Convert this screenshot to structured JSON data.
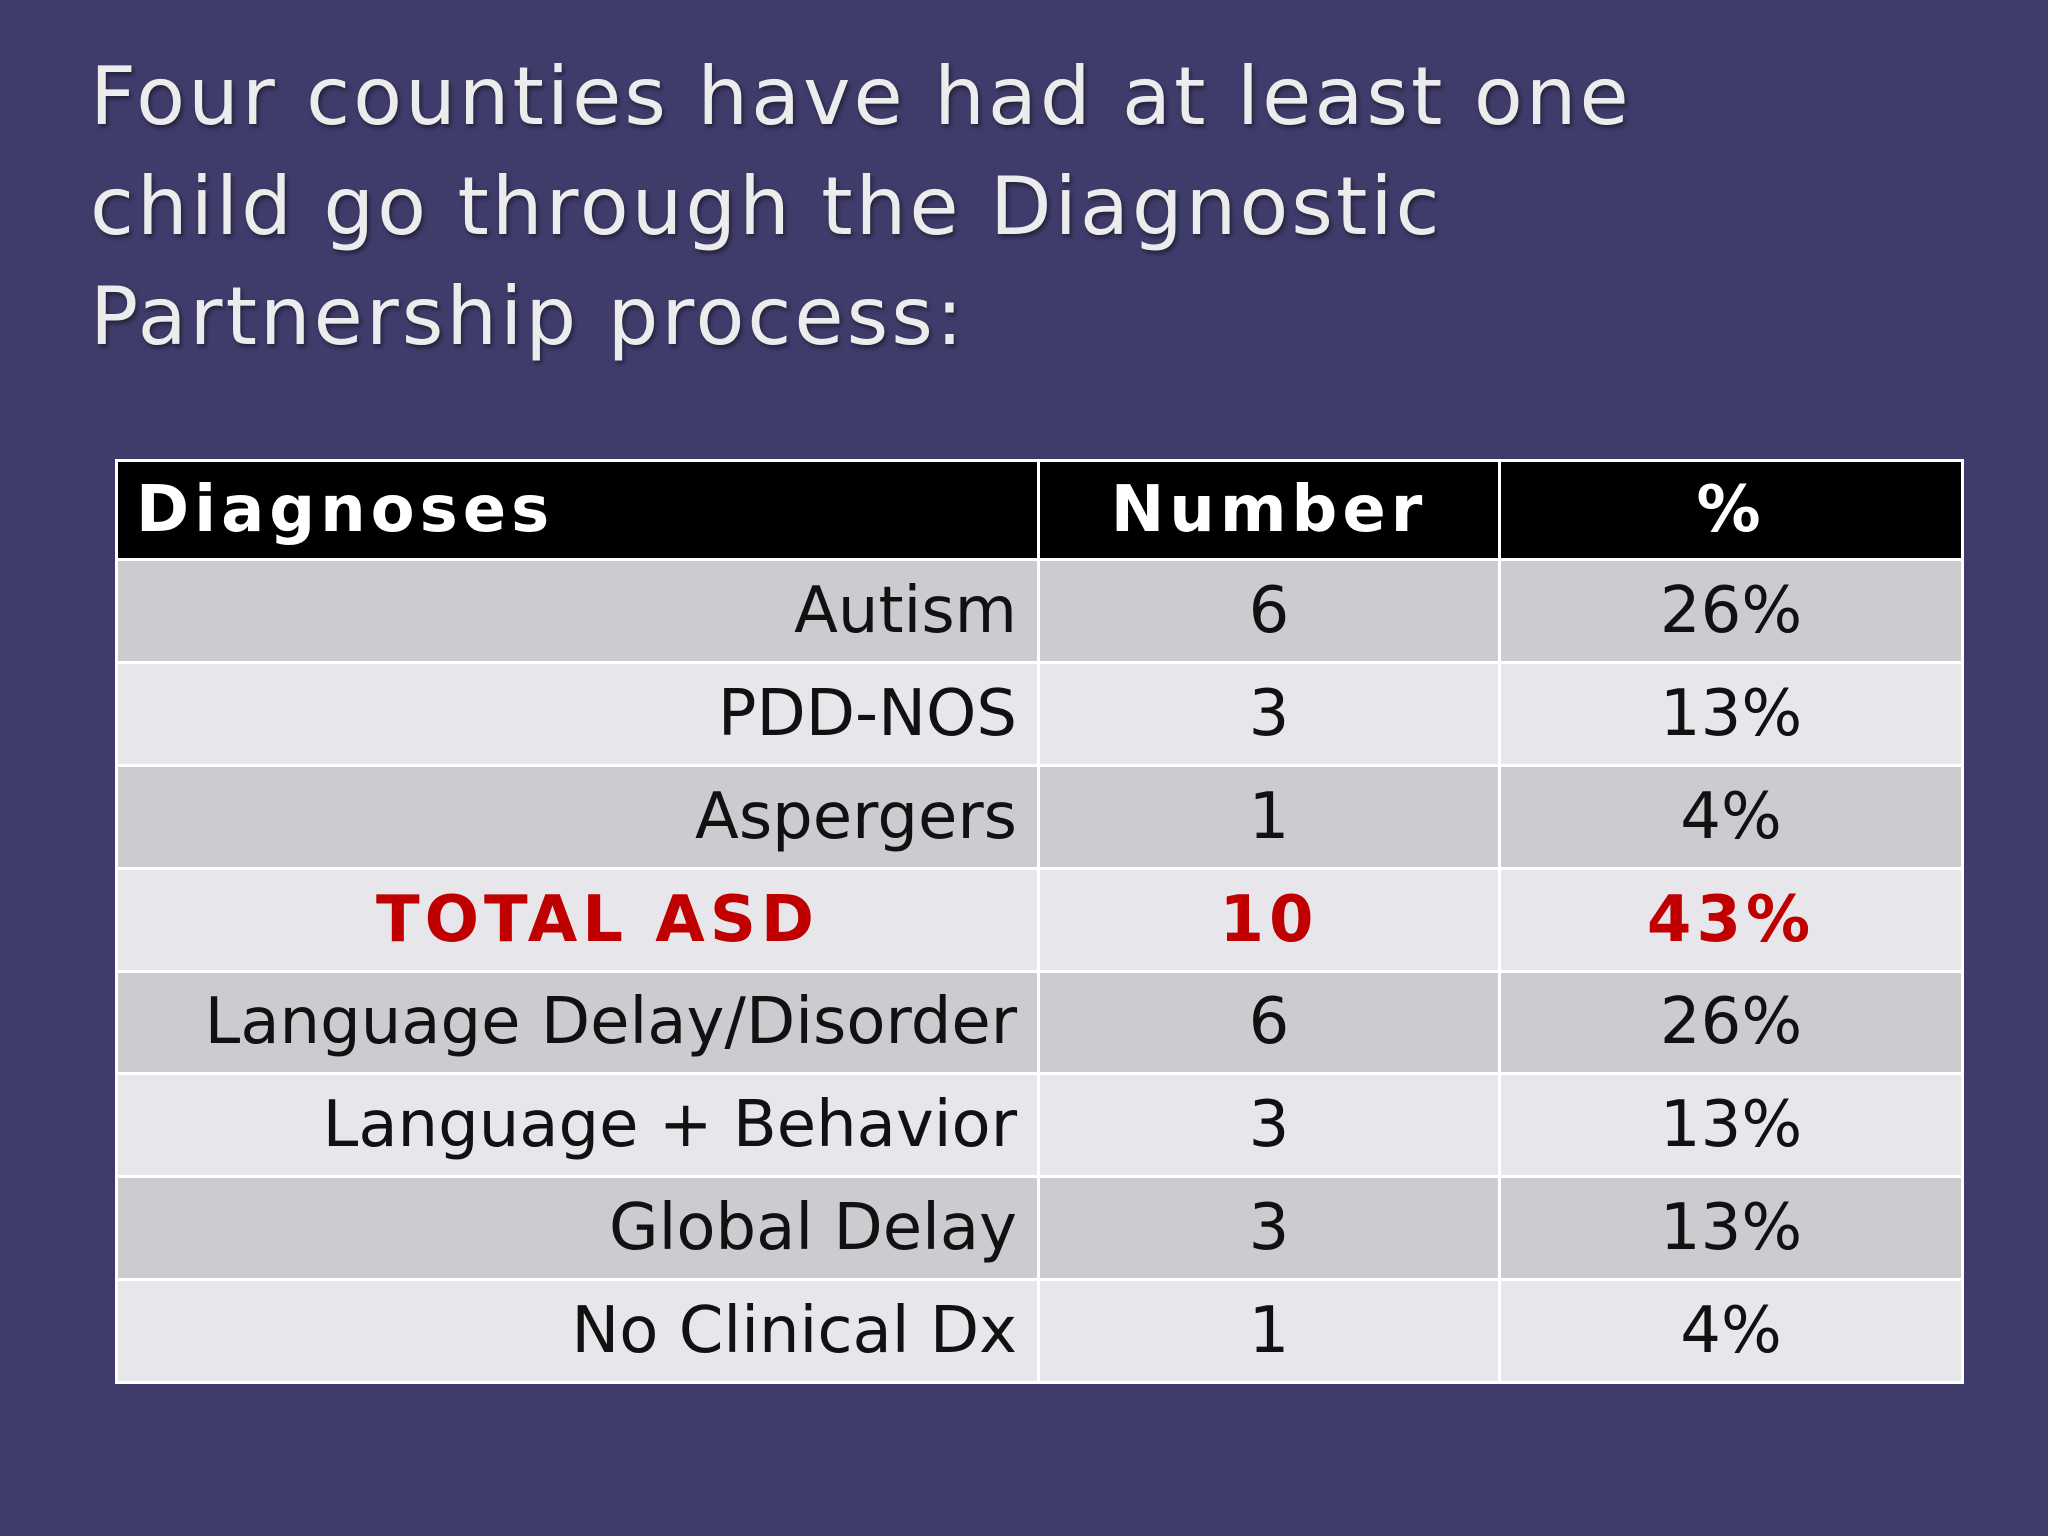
{
  "slide": {
    "title_lines": [
      "Four counties have had at least one",
      "child go through the Diagnostic",
      "Partnership process:"
    ]
  },
  "table": {
    "headers": {
      "diagnoses": "Diagnoses",
      "number": "Number",
      "percent": "%"
    },
    "rows": [
      {
        "diagnosis": "Autism",
        "number": "6",
        "percent": "26%"
      },
      {
        "diagnosis": "PDD-NOS",
        "number": "3",
        "percent": "13%"
      },
      {
        "diagnosis": "Aspergers",
        "number": "1",
        "percent": "4%"
      },
      {
        "diagnosis": "TOTAL ASD",
        "number": "10",
        "percent": "43%"
      },
      {
        "diagnosis": "Language Delay/Disorder",
        "number": "6",
        "percent": "26%"
      },
      {
        "diagnosis": "Language + Behavior",
        "number": "3",
        "percent": "13%"
      },
      {
        "diagnosis": "Global Delay",
        "number": "3",
        "percent": "13%"
      },
      {
        "diagnosis": "No Clinical Dx",
        "number": "1",
        "percent": "4%"
      }
    ]
  },
  "colors": {
    "background": "#3f3c6b",
    "title_text": "#ececec",
    "header_bg": "#000000",
    "header_text": "#ffffff",
    "row_dark": "#cccbcf",
    "row_light": "#e7e6ea",
    "total_highlight": "#c00000"
  }
}
